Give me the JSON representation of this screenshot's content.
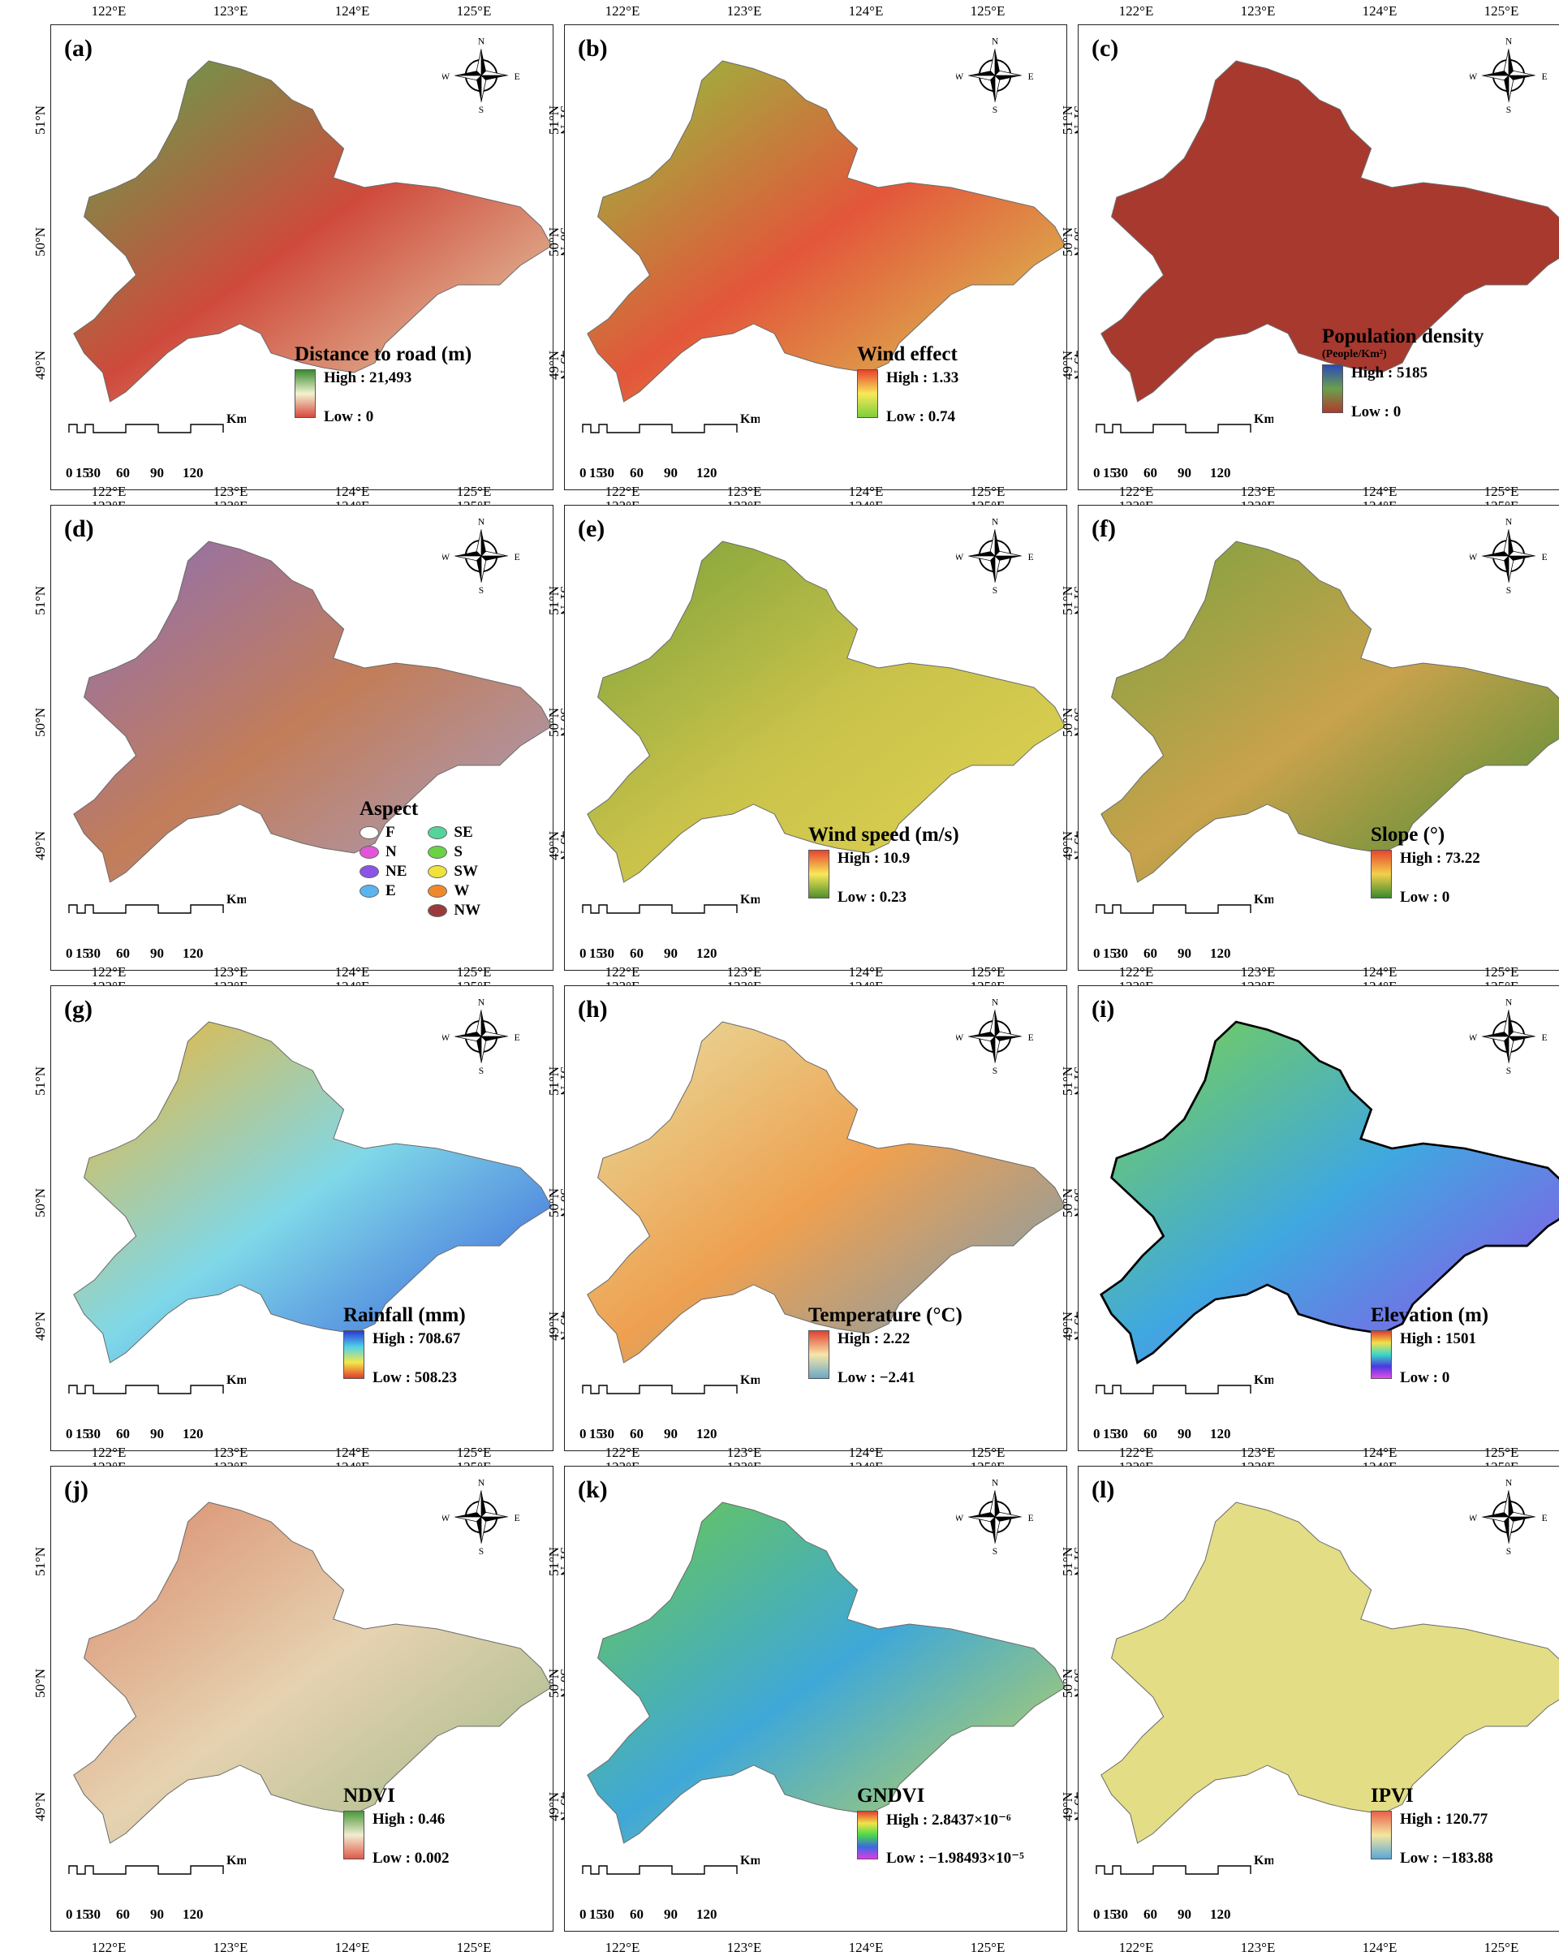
{
  "panels": [
    {
      "label": "(a)",
      "title": "Distance to road (m)",
      "high": "High : 21,493",
      "low": "Low : 0",
      "ramp": [
        "#3a8a2e",
        "#f2f2d0",
        "#d9473f"
      ],
      "fill": [
        "#5aa84e",
        "#cf4a3c",
        "#e7e2b8"
      ]
    },
    {
      "label": "(b)",
      "title": "Wind effect",
      "high": "High : 1.33",
      "low": "Low : 0.74",
      "ramp": [
        "#e8422f",
        "#f8e858",
        "#7ccf3b"
      ],
      "fill": [
        "#8ec63f",
        "#e3563a",
        "#d9d557"
      ]
    },
    {
      "label": "(c)",
      "title": "Population density",
      "subtitle": "(People/Km²)",
      "high": "High : 5185",
      "low": "Low : 0",
      "ramp": [
        "#2d4ab8",
        "#6aa04a",
        "#b03a2e"
      ],
      "fill": [
        "#a8392f",
        "#a8392f",
        "#a8392f"
      ]
    },
    {
      "label": "(d)",
      "title": "Aspect",
      "aspect": [
        [
          "F",
          "#ffffff"
        ],
        [
          "SE",
          "#55d49a"
        ],
        [
          "N",
          "#e255d8"
        ],
        [
          "S",
          "#6bd145"
        ],
        [
          "NE",
          "#8a55e6"
        ],
        [
          "SW",
          "#f0e23a"
        ],
        [
          "E",
          "#5ab4ee"
        ],
        [
          "W",
          "#ef8a2c"
        ],
        [
          "",
          "#ffffff"
        ],
        [
          "NW",
          "#9b3a3a"
        ]
      ],
      "fill": [
        "#8d6fb6",
        "#c27d59",
        "#a6a0c8"
      ]
    },
    {
      "label": "(e)",
      "title": "Wind speed (m/s)",
      "high": "High : 10.9",
      "low": "Low : 0.23",
      "ramp": [
        "#e8442f",
        "#f8e858",
        "#4f8f2c"
      ],
      "fill": [
        "#7aa13a",
        "#c9c24a",
        "#e0d454"
      ]
    },
    {
      "label": "(f)",
      "title": "Slope (°)",
      "high": "High : 73.22",
      "low": "Low : 0",
      "ramp": [
        "#e8442f",
        "#f2d04a",
        "#3a8a2e"
      ],
      "fill": [
        "#7aa23f",
        "#c9a24c",
        "#3f8a32"
      ]
    },
    {
      "label": "(g)",
      "title": "Rainfall (mm)",
      "high": "High : 708.67",
      "low": "Low : 508.23",
      "ramp": [
        "#2d37d8",
        "#4fd2e8",
        "#f4e84a",
        "#e23b2a"
      ],
      "fill": [
        "#f2b430",
        "#7fd8e8",
        "#3353d8"
      ]
    },
    {
      "label": "(h)",
      "title": "Temperature (°C)",
      "high": "High : 2.22",
      "low": "Low : −2.41",
      "ramp": [
        "#e2402e",
        "#f6e6a8",
        "#6aa8c8"
      ],
      "fill": [
        "#e7dfa0",
        "#eea050",
        "#6a9cc0"
      ]
    },
    {
      "label": "(i)",
      "title": "Elevation (m)",
      "high": "High : 1501",
      "low": "Low : 0",
      "ramp": [
        "#e03a2a",
        "#f0e14a",
        "#3ad8c8",
        "#4a38e0",
        "#e84ae8"
      ],
      "fill": [
        "#7bd24a",
        "#3fa8e0",
        "#9a46e8"
      ]
    },
    {
      "label": "(j)",
      "title": "NDVI",
      "high": "High : 0.46",
      "low": "Low : 0.002",
      "ramp": [
        "#4b9a3c",
        "#f2ecd0",
        "#e05a48"
      ],
      "fill": [
        "#d98a6c",
        "#e6d2b0",
        "#9cb886"
      ]
    },
    {
      "label": "(k)",
      "title": "GNDVI",
      "high": "High : 2.8437×10⁻⁶",
      "low": "Low : −1.98493×10⁻⁵",
      "ramp": [
        "#e2402e",
        "#f0e44a",
        "#4ad84a",
        "#3a6ae0",
        "#e03ae8"
      ],
      "fill": [
        "#6bc94a",
        "#3fa8d8",
        "#d0d84a"
      ]
    },
    {
      "label": "(l)",
      "title": "IPVI",
      "high": "High : 120.77",
      "low": "Low : −183.88",
      "ramp": [
        "#e8604a",
        "#f4e6a0",
        "#5aa8d8"
      ],
      "fill": [
        "#e3de86",
        "#e3de86",
        "#e3de86"
      ]
    }
  ],
  "axes": {
    "lon_ticks": [
      "122°E",
      "123°E",
      "124°E",
      "125°E"
    ],
    "lat_ticks": [
      "51°N",
      "50°N",
      "49°N"
    ]
  },
  "scale": {
    "unit": "Km",
    "ticks": [
      "0",
      "15",
      "30",
      "60",
      "90",
      "120"
    ]
  },
  "compass": {
    "n": "N",
    "s": "S",
    "e": "E",
    "w": "W"
  }
}
